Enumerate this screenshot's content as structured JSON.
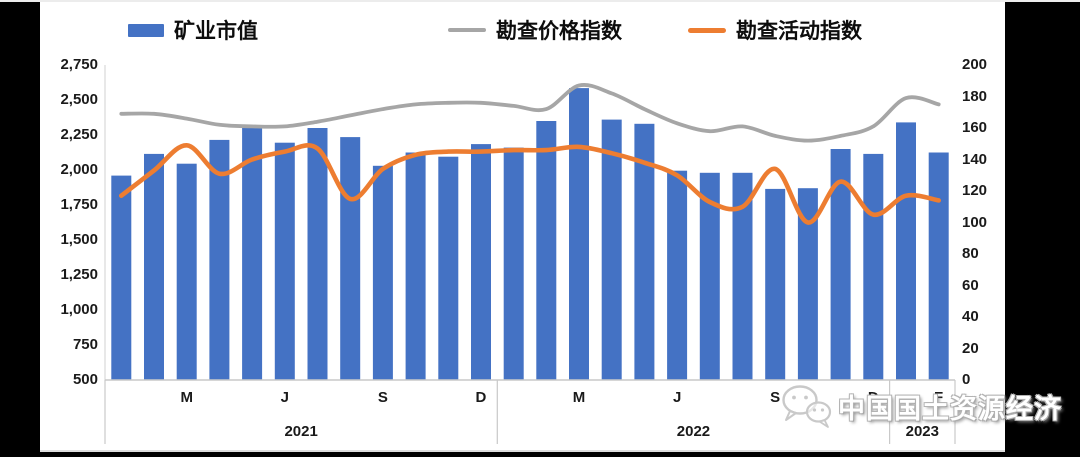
{
  "colors": {
    "background": "#000000",
    "panel": "#ffffff",
    "bar": "#4472C4",
    "price_line": "#A6A6A6",
    "activity_line": "#ED7D31",
    "axis_text": "#1a1a1a",
    "axis_line": "#c9c9c9",
    "watermark_gray": "#c9c9c9"
  },
  "legend": {
    "items": [
      {
        "label": "矿业市值",
        "swatch": "bar",
        "color": "#4472C4"
      },
      {
        "label": "勘查价格指数",
        "swatch": "line",
        "color": "#A6A6A6"
      },
      {
        "label": "勘查活动指数",
        "swatch": "line",
        "color": "#ED7D31"
      }
    ]
  },
  "watermark": {
    "icon": "wechat-icon",
    "text": "中国国土资源经济"
  },
  "chart_data": {
    "type": "combo",
    "title": "",
    "categories": [
      "2021-01",
      "2021-02",
      "2021-03",
      "2021-04",
      "2021-05",
      "2021-06",
      "2021-07",
      "2021-08",
      "2021-09",
      "2021-10",
      "2021-11",
      "2021-12",
      "2022-01",
      "2022-02",
      "2022-03",
      "2022-04",
      "2022-05",
      "2022-06",
      "2022-07",
      "2022-08",
      "2022-09",
      "2022-10",
      "2022-11",
      "2022-12",
      "2023-01",
      "2023-02"
    ],
    "x_tick_labels": [
      "",
      "",
      "M",
      "",
      "",
      "J",
      "",
      "",
      "S",
      "",
      "",
      "D",
      "",
      "",
      "M",
      "",
      "",
      "J",
      "",
      "",
      "S",
      "",
      "",
      "D",
      "",
      "F"
    ],
    "year_groups": [
      {
        "label": "2021",
        "start": 0,
        "end": 11
      },
      {
        "label": "2022",
        "start": 12,
        "end": 23
      },
      {
        "label": "2023",
        "start": 24,
        "end": 25
      }
    ],
    "series": [
      {
        "name": "矿业市值",
        "type": "bar",
        "axis": "left",
        "color": "#4472C4",
        "values": [
          1960,
          2115,
          2045,
          2215,
          2320,
          2195,
          2300,
          2235,
          2030,
          2125,
          2095,
          2185,
          2160,
          2350,
          2585,
          2360,
          2330,
          1995,
          1980,
          1980,
          1865,
          1870,
          2150,
          2115,
          2340,
          2125
        ]
      },
      {
        "name": "勘查价格指数",
        "type": "line",
        "axis": "right",
        "color": "#A6A6A6",
        "values": [
          169,
          169,
          166,
          162,
          161,
          161,
          164,
          168,
          172,
          175,
          176,
          176,
          174,
          172,
          187,
          182,
          172,
          163,
          158,
          161,
          155,
          152,
          155,
          161,
          179,
          175
        ]
      },
      {
        "name": "勘查活动指数",
        "type": "line",
        "axis": "right",
        "color": "#ED7D31",
        "values": [
          117,
          133,
          149,
          131,
          140,
          145,
          147,
          115,
          134,
          143,
          145,
          145,
          146,
          146,
          148,
          144,
          138,
          130,
          113,
          110,
          134,
          100,
          126,
          105,
          117,
          114
        ]
      }
    ],
    "left_axis": {
      "min": 500,
      "max": 2750,
      "step": 250,
      "tick_labels": [
        "2,750",
        "2,500",
        "2,250",
        "2,000",
        "1,750",
        "1,500",
        "1,250",
        "1,000",
        "750",
        "500"
      ]
    },
    "right_axis": {
      "min": 0,
      "max": 200,
      "step": 20,
      "tick_labels": [
        "200",
        "180",
        "160",
        "140",
        "120",
        "100",
        "80",
        "60",
        "40",
        "20",
        "0"
      ]
    },
    "grid": false,
    "legend_position": "top"
  }
}
